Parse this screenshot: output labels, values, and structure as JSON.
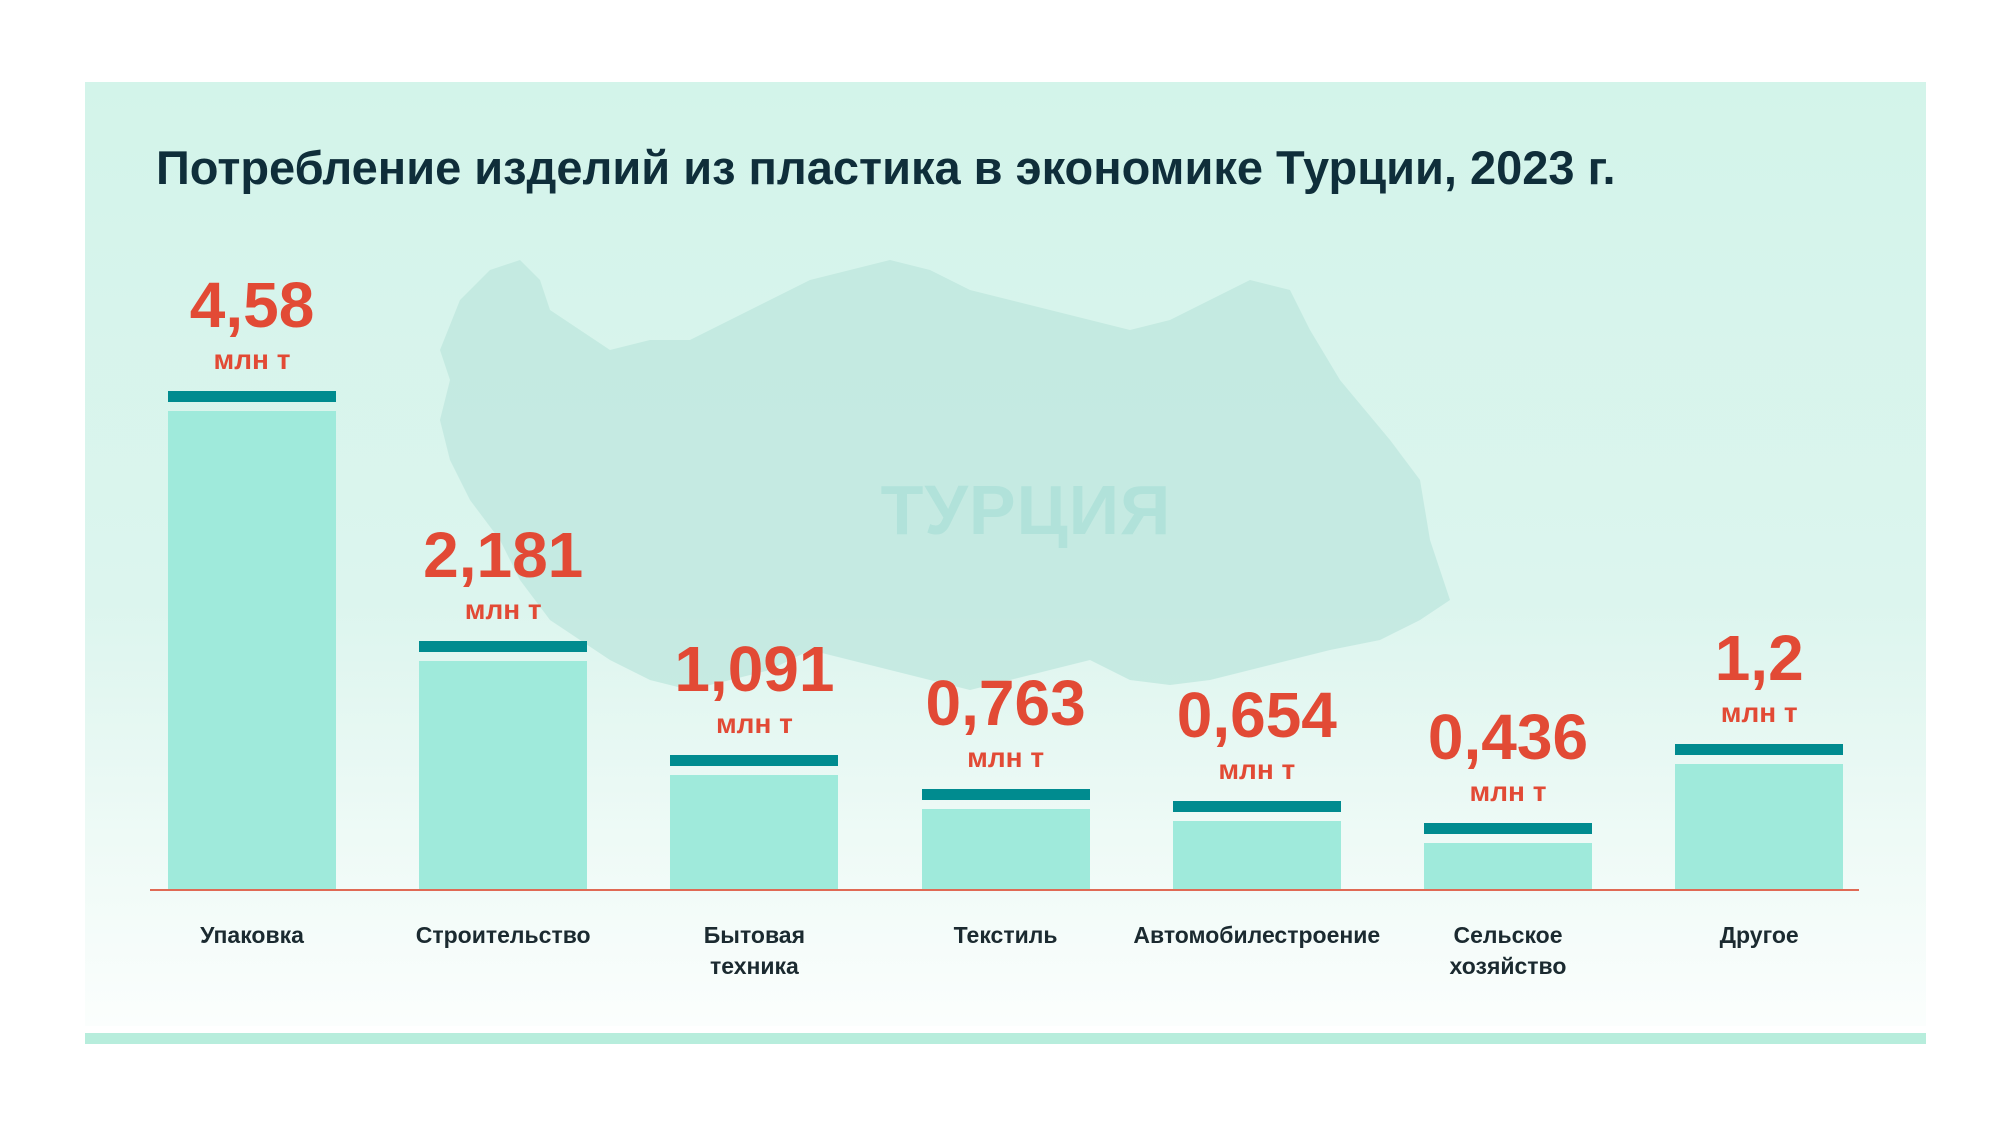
{
  "chart_data": {
    "type": "bar",
    "title": "Потребление изделий из пластика в экономике Турции, 2023 г.",
    "watermark": "ТУРЦИЯ",
    "categories": [
      [
        "Упаковка"
      ],
      [
        "Строительство"
      ],
      [
        "Бытовая",
        "техника"
      ],
      [
        "Текстиль"
      ],
      [
        "Автомобилестроение"
      ],
      [
        "Сельское",
        "хозяйство"
      ],
      [
        "Другое"
      ]
    ],
    "values": [
      4.58,
      2.181,
      1.091,
      0.763,
      0.654,
      0.436,
      1.2
    ],
    "value_labels": [
      "4,58",
      "2,181",
      "1,091",
      "0,763",
      "0,654",
      "0,436",
      "1,2"
    ],
    "unit": "млн т",
    "xlabel": "",
    "ylabel": "",
    "ylim": [
      0,
      4.6
    ],
    "grid": false,
    "colors": {
      "bar": "#9feadb",
      "cap": "#008b8f",
      "value": "#e24a35",
      "axis": "#e06a55"
    }
  }
}
